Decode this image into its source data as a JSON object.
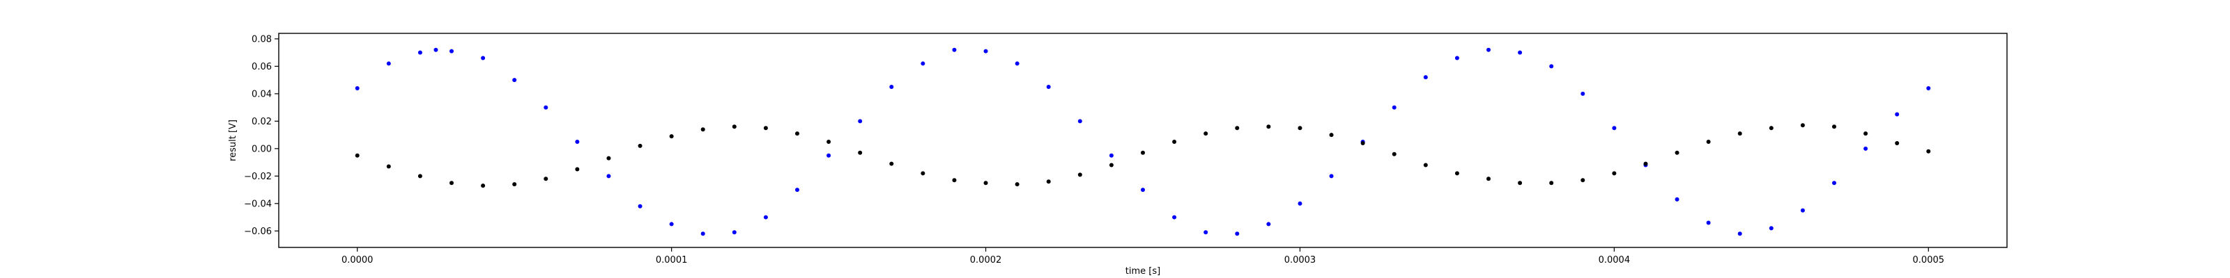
{
  "chart_data": {
    "type": "scatter",
    "title": "",
    "xlabel": "time [s]",
    "ylabel": "result [V]",
    "xlim": [
      -2.5e-05,
      0.000525
    ],
    "ylim": [
      -0.072,
      0.084
    ],
    "xticks": [
      0,
      0.0001,
      0.0002,
      0.0003,
      0.0004,
      0.0005
    ],
    "xtick_labels": [
      "0.0000",
      "0.0001",
      "0.0002",
      "0.0003",
      "0.0004",
      "0.0005"
    ],
    "yticks": [
      -0.06,
      -0.04,
      -0.02,
      0.0,
      0.02,
      0.04,
      0.06,
      0.08
    ],
    "ytick_labels": [
      "−0.06",
      "−0.04",
      "−0.02",
      "0.00",
      "0.02",
      "0.04",
      "0.06",
      "0.08"
    ],
    "grid": false,
    "legend": "none",
    "colors": {
      "series_blue": "#0000ff",
      "series_black": "#000000"
    },
    "series": [
      {
        "color": "#0000ff",
        "x": [
          0,
          1e-05,
          2e-05,
          2.5e-05,
          3e-05,
          4e-05,
          5e-05,
          6e-05,
          7e-05,
          8e-05,
          9e-05,
          0.0001,
          0.00011,
          0.00012,
          0.00013,
          0.00014,
          0.00015,
          0.00016,
          0.00017,
          0.00018,
          0.00019,
          0.0002,
          0.00021,
          0.00022,
          0.00023,
          0.00024,
          0.00025,
          0.00026,
          0.00027,
          0.00028,
          0.00029,
          0.0003,
          0.00031,
          0.00032,
          0.00033,
          0.00034,
          0.00035,
          0.00036,
          0.00037,
          0.00038,
          0.00039,
          0.0004,
          0.00041,
          0.00042,
          0.00043,
          0.00044,
          0.00045,
          0.00046,
          0.00047,
          0.00048,
          0.00049,
          0.0005
        ],
        "y": [
          0.044,
          0.062,
          0.07,
          0.072,
          0.071,
          0.066,
          0.05,
          0.03,
          0.005,
          -0.02,
          -0.042,
          -0.055,
          -0.062,
          -0.061,
          -0.05,
          -0.03,
          -0.005,
          0.02,
          0.045,
          0.062,
          0.072,
          0.071,
          0.062,
          0.045,
          0.02,
          -0.005,
          -0.03,
          -0.05,
          -0.061,
          -0.062,
          -0.055,
          -0.04,
          -0.02,
          0.005,
          0.03,
          0.052,
          0.066,
          0.072,
          0.07,
          0.06,
          0.04,
          0.015,
          -0.012,
          -0.037,
          -0.054,
          -0.062,
          -0.058,
          -0.045,
          -0.025,
          0.0,
          0.025,
          0.044
        ]
      },
      {
        "color": "#000000",
        "x": [
          0,
          1e-05,
          2e-05,
          3e-05,
          4e-05,
          5e-05,
          6e-05,
          7e-05,
          8e-05,
          9e-05,
          0.0001,
          0.00011,
          0.00012,
          0.00013,
          0.00014,
          0.00015,
          0.00016,
          0.00017,
          0.00018,
          0.00019,
          0.0002,
          0.00021,
          0.00022,
          0.00023,
          0.00024,
          0.00025,
          0.00026,
          0.00027,
          0.00028,
          0.00029,
          0.0003,
          0.00031,
          0.00032,
          0.00033,
          0.00034,
          0.00035,
          0.00036,
          0.00037,
          0.00038,
          0.00039,
          0.0004,
          0.00041,
          0.00042,
          0.00043,
          0.00044,
          0.00045,
          0.00046,
          0.00047,
          0.00048,
          0.00049,
          0.0005
        ],
        "y": [
          -0.005,
          -0.013,
          -0.02,
          -0.025,
          -0.027,
          -0.026,
          -0.022,
          -0.015,
          -0.007,
          0.002,
          0.009,
          0.014,
          0.016,
          0.015,
          0.011,
          0.005,
          -0.003,
          -0.011,
          -0.018,
          -0.023,
          -0.025,
          -0.026,
          -0.024,
          -0.019,
          -0.012,
          -0.003,
          0.005,
          0.011,
          0.015,
          0.016,
          0.015,
          0.01,
          0.004,
          -0.004,
          -0.012,
          -0.018,
          -0.022,
          -0.025,
          -0.025,
          -0.023,
          -0.018,
          -0.011,
          -0.003,
          0.005,
          0.011,
          0.015,
          0.017,
          0.016,
          0.011,
          0.004,
          -0.002
        ]
      }
    ]
  }
}
